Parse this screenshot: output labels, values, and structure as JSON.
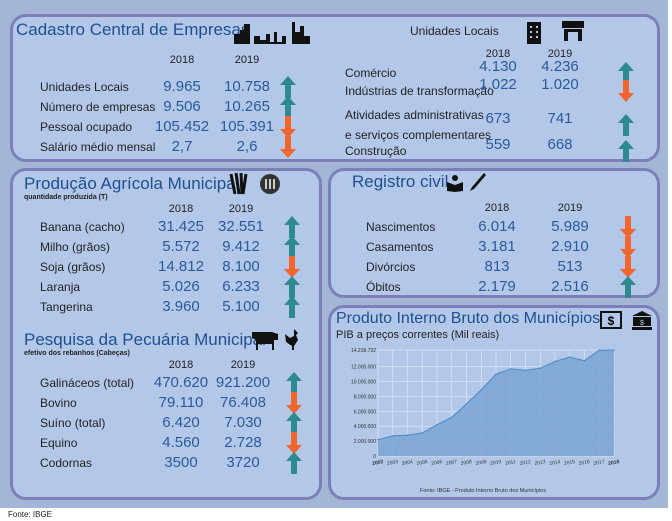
{
  "colors": {
    "up": "#2e8a92",
    "down": "#f2662e",
    "title": "#1f4f8f",
    "value": "#2a5a9a"
  },
  "cadastro": {
    "title": "Cadastro Central de Empresas",
    "years": [
      "2018",
      "2019"
    ],
    "rows": [
      {
        "label": "Unidades Locais",
        "v2018": "9.965",
        "v2019": "10.758",
        "trend": "up"
      },
      {
        "label": "Número de empresas",
        "v2018": "9.506",
        "v2019": "10.265",
        "trend": "up"
      },
      {
        "label": "Pessoal ocupado",
        "v2018": "105.452",
        "v2019": "105.391",
        "trend": "down"
      },
      {
        "label": "Salário médio mensal",
        "v2018": "2,7",
        "v2019": "2,6",
        "trend": "down"
      }
    ]
  },
  "unidades": {
    "title": "Unidades Locais",
    "years": [
      "2018",
      "2019"
    ],
    "rows": [
      {
        "label": "Comércio",
        "v2018": "4.130",
        "v2019": "4.236",
        "trend": "up"
      },
      {
        "label": "Indústrias de transformação",
        "v2018": "1.022",
        "v2019": "1.020",
        "trend": "down"
      },
      {
        "label": "Atividades administrativas",
        "label2": "e serviços complementares",
        "v2018": "673",
        "v2019": "741",
        "trend": "up"
      },
      {
        "label": "Construção",
        "v2018": "559",
        "v2019": "668",
        "trend": "up"
      }
    ]
  },
  "agricola": {
    "title": "Produção Agrícola Municipal",
    "subtitle": "quantidade produzida (T)",
    "years": [
      "2018",
      "2019"
    ],
    "rows": [
      {
        "label": "Banana (cacho)",
        "v2018": "31.425",
        "v2019": "32.551",
        "trend": "up"
      },
      {
        "label": "Milho (grãos)",
        "v2018": "5.572",
        "v2019": "9.412",
        "trend": "up"
      },
      {
        "label": "Soja (grãos)",
        "v2018": "14.812",
        "v2019": "8.100",
        "trend": "down"
      },
      {
        "label": "Laranja",
        "v2018": "5.026",
        "v2019": "6.233",
        "trend": "up"
      },
      {
        "label": "Tangerina",
        "v2018": "3.960",
        "v2019": "5.100",
        "trend": "up"
      }
    ]
  },
  "pecuaria": {
    "title": "Pesquisa da Pecuária Municipal",
    "subtitle": "efetivo dos rebanhos (Cabeças)",
    "years": [
      "2018",
      "2019"
    ],
    "rows": [
      {
        "label": "Galináceos (total)",
        "v2018": "470.620",
        "v2019": "921.200",
        "trend": "up"
      },
      {
        "label": "Bovino",
        "v2018": "79.110",
        "v2019": "76.408",
        "trend": "down"
      },
      {
        "label": "Suíno (total)",
        "v2018": "6.420",
        "v2019": "7.030",
        "trend": "up"
      },
      {
        "label": "Equino",
        "v2018": "4.560",
        "v2019": "2.728",
        "trend": "down"
      },
      {
        "label": "Codornas",
        "v2018": "3500",
        "v2019": "3720",
        "trend": "up"
      }
    ]
  },
  "registro": {
    "title": "Registro civil",
    "years": [
      "2018",
      "2019"
    ],
    "rows": [
      {
        "label": "Nascimentos",
        "v2018": "6.014",
        "v2019": "5.989",
        "trend": "down"
      },
      {
        "label": "Casamentos",
        "v2018": "3.181",
        "v2019": "2.910",
        "trend": "down"
      },
      {
        "label": "Divórcios",
        "v2018": "813",
        "v2019": "513",
        "trend": "down"
      },
      {
        "label": "Óbitos",
        "v2018": "2.179",
        "v2019": "2.516",
        "trend": "up"
      }
    ]
  },
  "pib": {
    "title": "Produto Interno Bruto dos Municípios",
    "subtitle": "PIB a preços correntes (Mil reais)",
    "source": "Fonte: IBGE - Produto Interno Bruto dos Municípios"
  },
  "chart_data": {
    "type": "area",
    "title": "PIB a preços correntes (Mil reais)",
    "x": [
      "2002",
      "2003",
      "2004",
      "2005",
      "2006",
      "2007",
      "2008",
      "2009",
      "2010",
      "2011",
      "2012",
      "2013",
      "2014",
      "2015",
      "2016",
      "2017",
      "2018"
    ],
    "values": [
      2200000,
      2700000,
      2800000,
      3100000,
      4200000,
      5200000,
      7000000,
      8900000,
      11000000,
      11700000,
      11500000,
      11800000,
      12700000,
      13300000,
      12800000,
      14200000,
      14238732
    ],
    "yticks": [
      "0",
      "2.000.000",
      "4.000.000",
      "6.000.000",
      "8.000.000",
      "10.000.000",
      "12.000.000",
      "14.238.732"
    ],
    "ytick_values": [
      0,
      2000000,
      4000000,
      6000000,
      8000000,
      10000000,
      12000000,
      14238732
    ],
    "ylim": [
      0,
      14238732
    ],
    "grid": true
  },
  "footer": "Fonte: IBGE"
}
